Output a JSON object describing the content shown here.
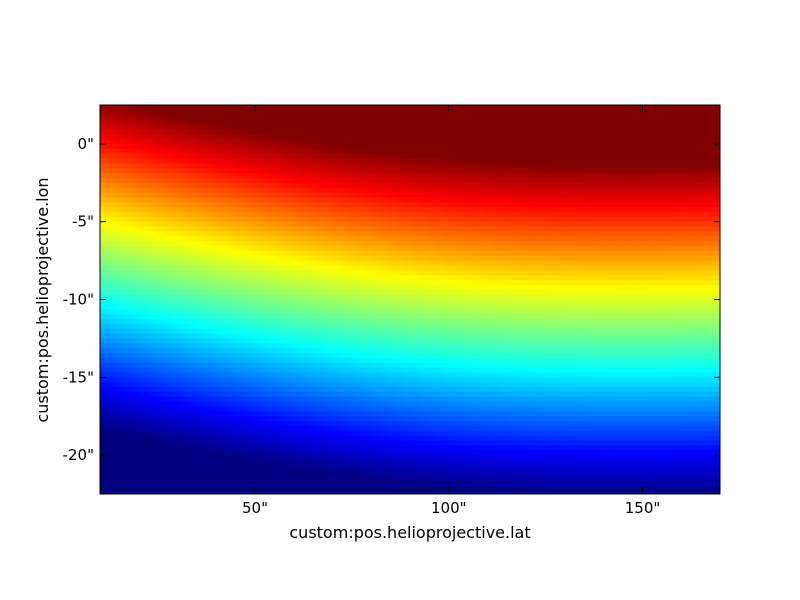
{
  "chart_data": {
    "type": "heatmap",
    "title": "",
    "xlabel": "custom:pos.helioprojective.lat",
    "ylabel": "custom:pos.helioprojective.lon",
    "colormap": "jet",
    "xlim": [
      10,
      170
    ],
    "ylim": [
      -22.5,
      2.5
    ],
    "x_ticks": [
      {
        "value": 50,
        "label": "50\""
      },
      {
        "value": 100,
        "label": "100\""
      },
      {
        "value": 150,
        "label": "150\""
      }
    ],
    "y_ticks": [
      {
        "value": 0,
        "label": "0\""
      },
      {
        "value": -5,
        "label": "-5\""
      },
      {
        "value": -10,
        "label": "-10\""
      },
      {
        "value": -15,
        "label": "-15\""
      },
      {
        "value": -20,
        "label": "-20\""
      }
    ],
    "field": {
      "description_of_gradient": "value decreases from top to bottom, with contours tilting downward to the right",
      "low_color_hint": "#00007f",
      "high_color_hint": "#7f0000"
    },
    "grid": false,
    "legend": "none"
  }
}
